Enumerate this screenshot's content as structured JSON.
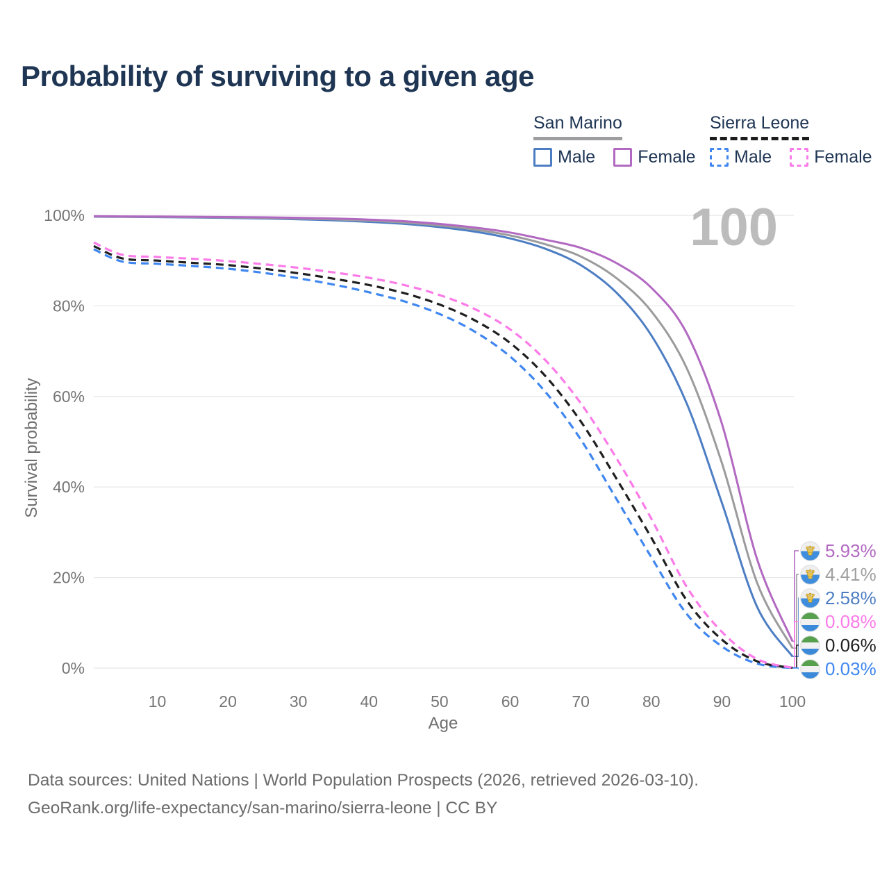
{
  "title": "Probability of surviving to a given age",
  "watermark_age": "100",
  "legend": {
    "groups": [
      {
        "country": "San Marino",
        "line_style": "solid",
        "underline_color": "#9e9ea0",
        "items": [
          {
            "label": "Male",
            "color": "#4d7ec3",
            "dashed": false
          },
          {
            "label": "Female",
            "color": "#b269c1",
            "dashed": false
          }
        ]
      },
      {
        "country": "Sierra Leone",
        "line_style": "dashed",
        "underline_color": "#1c1c1c",
        "items": [
          {
            "label": "Male",
            "color": "#3f86f0",
            "dashed": true
          },
          {
            "label": "Female",
            "color": "#fb7be8",
            "dashed": true
          }
        ]
      }
    ]
  },
  "end_labels": [
    {
      "value": "5.93%",
      "color": "#b269c1",
      "flag": "san-marino"
    },
    {
      "value": "4.41%",
      "color": "#a0a0a0",
      "flag": "san-marino"
    },
    {
      "value": "2.58%",
      "color": "#4d7ec3",
      "flag": "san-marino"
    },
    {
      "value": "0.08%",
      "color": "#fb7be8",
      "flag": "sierra-leone"
    },
    {
      "value": "0.06%",
      "color": "#1f1f1f",
      "flag": "sierra-leone"
    },
    {
      "value": "0.03%",
      "color": "#3f86f0",
      "flag": "sierra-leone"
    }
  ],
  "footer": {
    "line1": "Data sources: United Nations | World Population Prospects (2026, retrieved 2026-03-10).",
    "line2": "GeoRank.org/life-expectancy/san-marino/sierra-leone | CC BY"
  },
  "chart_data": {
    "type": "line",
    "xlabel": "Age",
    "ylabel": "Survival probability",
    "xlim": [
      1,
      100
    ],
    "ylim": [
      0,
      100
    ],
    "grid": "horizontal-only",
    "legend_position": "top-right",
    "x_ticks": [
      10,
      20,
      30,
      40,
      50,
      60,
      70,
      80,
      90,
      100
    ],
    "y_ticks": [
      {
        "value": 0,
        "label": "0%"
      },
      {
        "value": 20,
        "label": "20%"
      },
      {
        "value": 40,
        "label": "40%"
      },
      {
        "value": 60,
        "label": "60%"
      },
      {
        "value": 80,
        "label": "80%"
      },
      {
        "value": 100,
        "label": "100%"
      }
    ],
    "x": [
      1,
      5,
      10,
      15,
      20,
      25,
      30,
      35,
      40,
      45,
      50,
      55,
      60,
      65,
      70,
      75,
      80,
      85,
      90,
      95,
      100
    ],
    "series": [
      {
        "name": "San Marino Female",
        "color": "#b269c1",
        "dash": false,
        "end_value": "5.93%",
        "values": [
          99.8,
          99.75,
          99.72,
          99.68,
          99.62,
          99.55,
          99.45,
          99.3,
          99.05,
          98.7,
          98.1,
          97.3,
          96.2,
          94.6,
          92.8,
          89.5,
          84.0,
          74.0,
          54.0,
          24.0,
          5.93
        ]
      },
      {
        "name": "San Marino Both sexes",
        "color": "#9b9b9d",
        "dash": false,
        "end_value": "4.41%",
        "values": [
          99.75,
          99.7,
          99.66,
          99.6,
          99.52,
          99.42,
          99.3,
          99.1,
          98.8,
          98.4,
          97.75,
          96.85,
          95.55,
          93.6,
          90.9,
          86.2,
          78.8,
          66.3,
          45.3,
          18.8,
          4.41
        ]
      },
      {
        "name": "San Marino Male",
        "color": "#4d7ec3",
        "dash": false,
        "end_value": "2.58%",
        "values": [
          99.7,
          99.65,
          99.6,
          99.52,
          99.42,
          99.3,
          99.12,
          98.9,
          98.55,
          98.1,
          97.4,
          96.4,
          94.9,
          92.6,
          89.0,
          83.0,
          73.5,
          58.5,
          36.5,
          13.5,
          2.58
        ]
      },
      {
        "name": "Sierra Leone Female",
        "color": "#fb7be8",
        "dash": true,
        "end_value": "0.08%",
        "values": [
          94.0,
          91.3,
          90.8,
          90.4,
          89.9,
          89.2,
          88.4,
          87.4,
          86.2,
          84.6,
          82.4,
          79.3,
          74.8,
          68.0,
          58.5,
          46.5,
          33.0,
          18.0,
          8.0,
          2.0,
          0.08
        ]
      },
      {
        "name": "Sierra Leone Both sexes",
        "color": "#1f1f1f",
        "dash": true,
        "end_value": "0.06%",
        "values": [
          93.2,
          90.5,
          90.0,
          89.5,
          89.0,
          88.2,
          87.2,
          86.0,
          84.6,
          82.8,
          80.3,
          76.8,
          71.8,
          64.5,
          54.5,
          42.0,
          28.8,
          15.0,
          6.3,
          1.5,
          0.06
        ]
      },
      {
        "name": "Sierra Leone Male",
        "color": "#3f86f0",
        "dash": true,
        "end_value": "0.03%",
        "values": [
          92.5,
          89.8,
          89.3,
          88.8,
          88.2,
          87.3,
          86.1,
          84.7,
          83.0,
          81.0,
          78.2,
          74.3,
          68.8,
          61.0,
          50.5,
          37.5,
          24.5,
          12.0,
          4.8,
          1.0,
          0.03
        ]
      }
    ]
  }
}
